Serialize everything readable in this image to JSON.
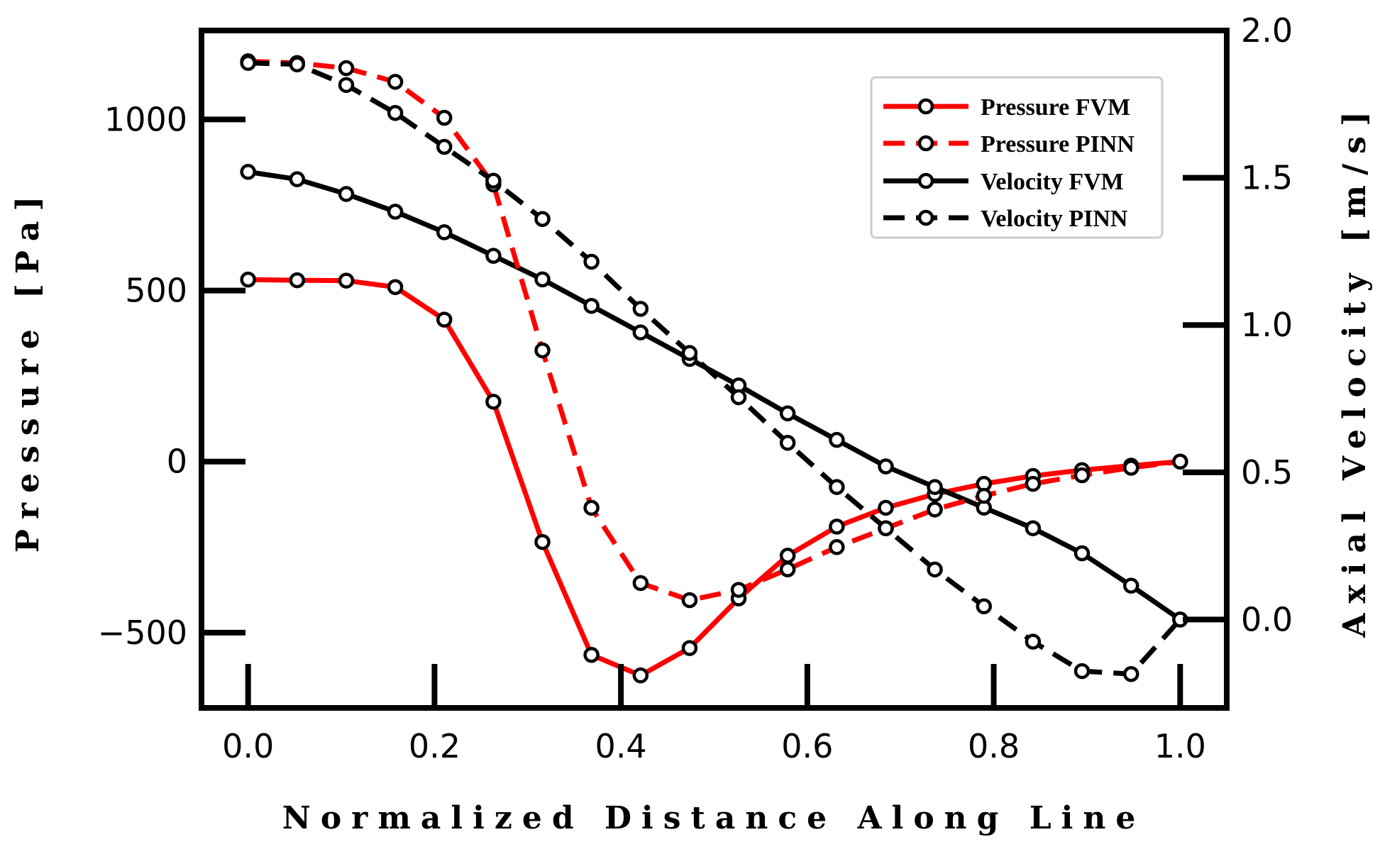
{
  "chart_data": {
    "type": "line",
    "title": "",
    "xlabel": "Normalized Distance Along Line",
    "ylabel": "Pressure [Pa]",
    "y2label": "Axial Velocity [m/s]",
    "xlim": [
      -0.05,
      1.05
    ],
    "ylim": [
      -720,
      1260
    ],
    "y2lim": [
      -0.3,
      2.0
    ],
    "x_ticks": [
      "0.0",
      "0.2",
      "0.4",
      "0.6",
      "0.8",
      "1.0"
    ],
    "y_ticks": [
      "−500",
      "0",
      "500",
      "1000"
    ],
    "y2_ticks": [
      "0.0",
      "0.5",
      "1.0",
      "1.5",
      "2.0"
    ],
    "grid": false,
    "legend_position": "top-right",
    "x": [
      0.0,
      0.0526,
      0.1053,
      0.1579,
      0.2105,
      0.2632,
      0.3158,
      0.3684,
      0.4211,
      0.4737,
      0.5263,
      0.5789,
      0.6316,
      0.6842,
      0.7368,
      0.7895,
      0.8421,
      0.8947,
      0.9474,
      1.0
    ],
    "series": [
      {
        "name": "Pressure FVM",
        "axis": "left",
        "color": "#ff0000",
        "dash": "solid",
        "values": [
          532,
          530,
          529,
          510,
          415,
          175,
          -235,
          -565,
          -625,
          -545,
          -400,
          -275,
          -190,
          -135,
          -95,
          -65,
          -42,
          -25,
          -12,
          0
        ]
      },
      {
        "name": "Pressure PINN",
        "axis": "left",
        "color": "#ff0000",
        "dash": "dashed",
        "values": [
          1170,
          1165,
          1150,
          1110,
          1005,
          810,
          325,
          -135,
          -355,
          -405,
          -375,
          -315,
          -250,
          -195,
          -140,
          -100,
          -65,
          -40,
          -18,
          0
        ]
      },
      {
        "name": "Velocity FVM",
        "axis": "right",
        "color": "#000000",
        "dash": "solid",
        "values": [
          1.52,
          1.495,
          1.445,
          1.385,
          1.315,
          1.235,
          1.155,
          1.065,
          0.975,
          0.885,
          0.795,
          0.7,
          0.61,
          0.52,
          0.45,
          0.38,
          0.31,
          0.225,
          0.115,
          0.0
        ]
      },
      {
        "name": "Velocity PINN",
        "axis": "right",
        "color": "#000000",
        "dash": "dashed",
        "values": [
          1.89,
          1.885,
          1.815,
          1.72,
          1.605,
          1.49,
          1.36,
          1.215,
          1.055,
          0.905,
          0.755,
          0.6,
          0.45,
          0.31,
          0.17,
          0.045,
          -0.075,
          -0.175,
          -0.185,
          0.0
        ]
      }
    ]
  }
}
